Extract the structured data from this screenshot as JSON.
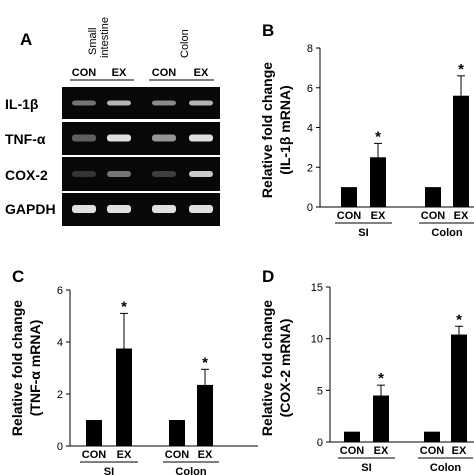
{
  "panel_A": {
    "letter": "A",
    "tissues": [
      "Small intestine",
      "Colon"
    ],
    "small_intestine_lines": [
      "Small",
      "intestine"
    ],
    "lanes": [
      "CON",
      "EX",
      "CON",
      "EX"
    ],
    "genes": [
      "IL-1β",
      "TNF-α",
      "COX-2",
      "GAPDH"
    ],
    "band_intensity": [
      [
        0.45,
        0.75,
        0.55,
        0.75
      ],
      [
        0.35,
        0.95,
        0.6,
        0.95
      ],
      [
        0.15,
        0.45,
        0.2,
        0.85
      ],
      [
        0.95,
        0.95,
        0.95,
        0.95
      ]
    ]
  },
  "chart_data": [
    {
      "panel": "B",
      "type": "bar",
      "ylabel": "Relative fold change (IL-1β mRNA)",
      "ylabel_lines": [
        "Relative fold change",
        "(IL-1β mRNA)"
      ],
      "categories": [
        "CON",
        "EX",
        "CON",
        "EX"
      ],
      "groups": [
        "SI",
        "Colon"
      ],
      "values": [
        1,
        2.5,
        1,
        5.6
      ],
      "errors": [
        0,
        0.7,
        0,
        1.0
      ],
      "significance": [
        "",
        "*",
        "",
        "*"
      ],
      "ylim": [
        0,
        8
      ],
      "yticks": [
        0,
        2,
        4,
        6,
        8
      ]
    },
    {
      "panel": "C",
      "type": "bar",
      "ylabel": "Relative fold change (TNF-α mRNA)",
      "ylabel_lines": [
        "Relative fold change",
        "(TNF-α mRNA)"
      ],
      "categories": [
        "CON",
        "EX",
        "CON",
        "EX"
      ],
      "groups": [
        "SI",
        "Colon"
      ],
      "values": [
        1,
        3.75,
        1,
        2.35
      ],
      "errors": [
        0,
        1.35,
        0,
        0.6
      ],
      "significance": [
        "",
        "*",
        "",
        "*"
      ],
      "ylim": [
        0,
        6
      ],
      "yticks": [
        0,
        2,
        4,
        6
      ]
    },
    {
      "panel": "D",
      "type": "bar",
      "ylabel": "Relative fold change (COX-2 mRNA)",
      "ylabel_lines": [
        "Relative fold change",
        "(COX-2 mRNA)"
      ],
      "categories": [
        "CON",
        "EX",
        "CON",
        "EX"
      ],
      "groups": [
        "SI",
        "Colon"
      ],
      "values": [
        1,
        4.5,
        1,
        10.4
      ],
      "errors": [
        0,
        1.0,
        0,
        0.8
      ],
      "significance": [
        "",
        "*",
        "",
        "*"
      ],
      "ylim": [
        0,
        15
      ],
      "yticks": [
        0,
        5,
        10,
        15
      ]
    }
  ]
}
